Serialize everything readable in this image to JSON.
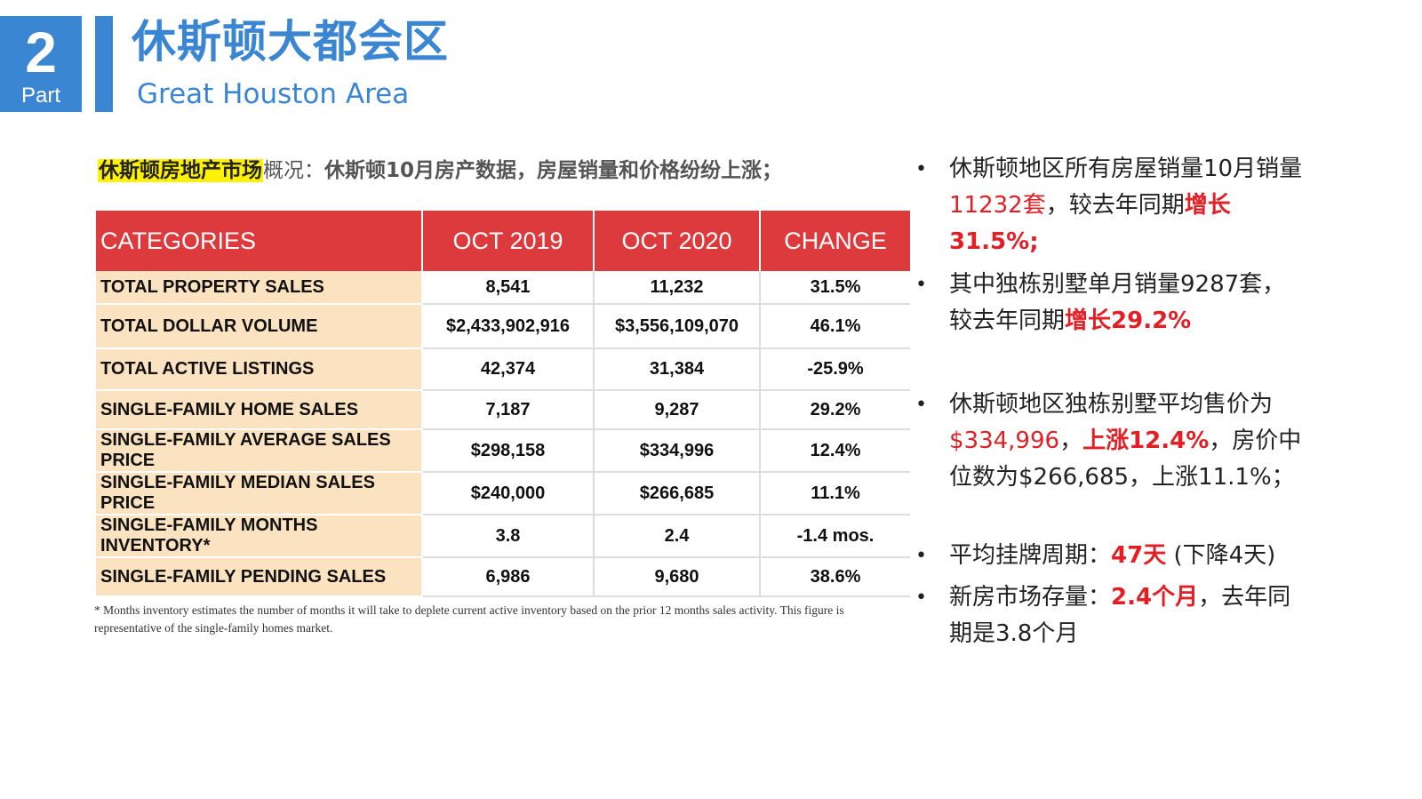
{
  "header": {
    "part_number": "2",
    "part_label": "Part",
    "title_cn": "休斯顿大都会区",
    "title_en": "Great Houston Area"
  },
  "intro": {
    "highlight": "休斯顿房地产市场",
    "mid": "概况：",
    "rest": "休斯顿10月房产数据，房屋销量和价格纷纷上涨；"
  },
  "table": {
    "headers": [
      "CATEGORIES",
      "OCT 2019",
      "OCT 2020",
      "CHANGE"
    ],
    "rows": [
      {
        "category": "TOTAL PROPERTY SALES",
        "oct2019": "8,541",
        "oct2020": "11,232",
        "change": "31.5%"
      },
      {
        "category": "TOTAL DOLLAR VOLUME",
        "oct2019": "$2,433,902,916",
        "oct2020": "$3,556,109,070",
        "change": "46.1%"
      },
      {
        "category": "TOTAL ACTIVE LISTINGS",
        "oct2019": "42,374",
        "oct2020": "31,384",
        "change": "-25.9%"
      },
      {
        "category": "SINGLE-FAMILY HOME SALES",
        "oct2019": "7,187",
        "oct2020": "9,287",
        "change": "29.2%"
      },
      {
        "category": "SINGLE-FAMILY AVERAGE SALES PRICE",
        "oct2019": "$298,158",
        "oct2020": "$334,996",
        "change": "12.4%"
      },
      {
        "category": "SINGLE-FAMILY MEDIAN SALES PRICE",
        "oct2019": "$240,000",
        "oct2020": "$266,685",
        "change": "11.1%"
      },
      {
        "category": "SINGLE-FAMILY MONTHS INVENTORY*",
        "oct2019": "3.8",
        "oct2020": "2.4",
        "change": "-1.4 mos."
      },
      {
        "category": "SINGLE-FAMILY PENDING SALES",
        "oct2019": "6,986",
        "oct2020": "9,680",
        "change": "38.6%"
      }
    ],
    "footnote": "* Months inventory estimates the number of months it will take to deplete current active inventory based on the prior 12 months sales activity. This figure is representative of the single-family homes market."
  },
  "bullets": {
    "b1": {
      "t1": "休斯顿地区所有房屋销量10月销量",
      "red": "11232套",
      "t2": "，较去年同期",
      "redb": "增长31.5%;"
    },
    "b2": {
      "t1": "其中独栋别墅单月销量9287套，较去年同期",
      "redb": "增长29.2%"
    },
    "b3": {
      "red": "$334,996",
      "t0": "休斯顿地区独栋别墅平均售价为",
      "t1": "，",
      "redb": "上涨12.4%",
      "t2": "，房价中位数为$266,685，上涨11.1%；"
    },
    "b4": {
      "t1": "平均挂牌周期：",
      "redb": "47天",
      "t2": " (下降4天)"
    },
    "b5": {
      "t1": "新房市场存量：",
      "redb": "2.4个月",
      "t2": "，去年同期是3.8个月"
    },
    "dot": "•"
  },
  "colors": {
    "accent_blue": "#3a86d2",
    "header_red": "#dc3a3c",
    "category_peach": "#fbe2c1",
    "highlight_yellow": "#fff200",
    "text_red": "#e31e24"
  }
}
